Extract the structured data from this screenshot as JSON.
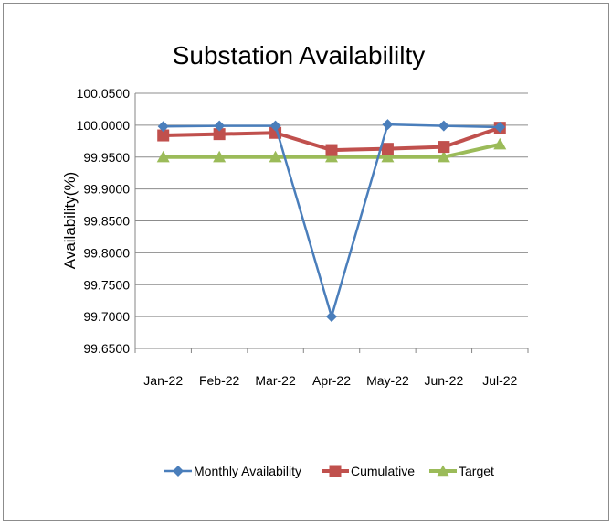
{
  "chart_data": {
    "type": "line",
    "title": "Substation  Availabililty",
    "ylabel": "Availability(%)",
    "xlabel": "",
    "categories": [
      "Jan-22",
      "Feb-22",
      "Mar-22",
      "Apr-22",
      "May-22",
      "Jun-22",
      "Jul-22"
    ],
    "ylim": [
      99.65,
      100.05
    ],
    "yticks": [
      "99.6500",
      "99.7000",
      "99.7500",
      "99.8000",
      "99.8500",
      "99.9000",
      "99.9500",
      "100.0000",
      "100.0500"
    ],
    "grid": "horizontal",
    "legend_position": "bottom",
    "series": [
      {
        "name": "Monthly Availability",
        "color": "#4a7ebb",
        "marker": "diamond",
        "values": [
          99.998,
          99.999,
          99.999,
          99.7,
          100.001,
          99.999,
          99.997
        ]
      },
      {
        "name": "Cumulative",
        "color": "#c0504d",
        "marker": "square",
        "values": [
          99.984,
          99.986,
          99.988,
          99.961,
          99.963,
          99.966,
          99.996
        ]
      },
      {
        "name": "Target",
        "color": "#9bbb59",
        "marker": "triangle",
        "values": [
          99.95,
          99.95,
          99.95,
          99.95,
          99.95,
          99.95,
          99.97
        ]
      }
    ]
  }
}
